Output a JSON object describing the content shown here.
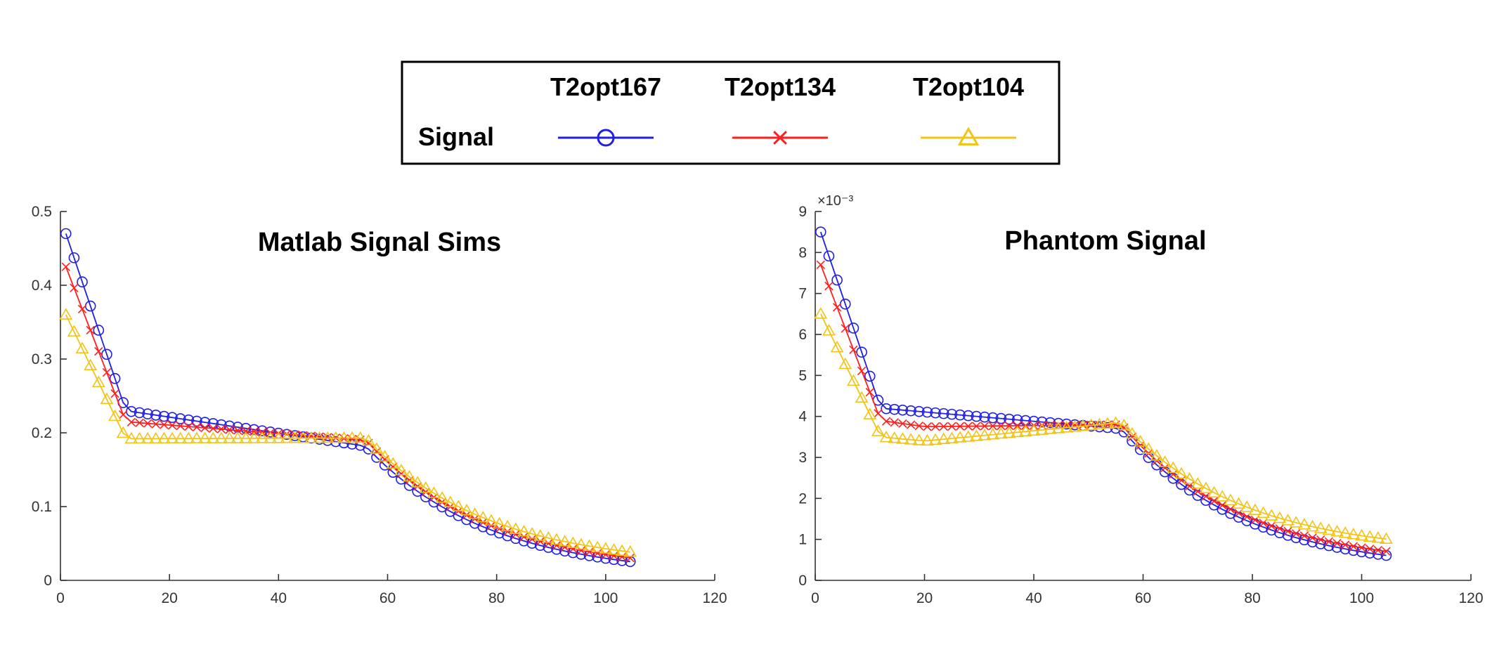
{
  "legend": {
    "row_label": "Signal",
    "entries": [
      {
        "name": "T2opt167",
        "color": "#1f1fe6",
        "marker": "circle"
      },
      {
        "name": "T2opt134",
        "color": "#ff1f1f",
        "marker": "x"
      },
      {
        "name": "T2opt104",
        "color": "#f0c419",
        "marker": "triangle"
      }
    ]
  },
  "chart_data": [
    {
      "type": "line",
      "title": "Matlab Signal Sims",
      "xlabel": "",
      "ylabel": "",
      "xlim": [
        0,
        120
      ],
      "ylim": [
        0,
        0.5
      ],
      "xticks": [
        "0",
        "20",
        "40",
        "60",
        "80",
        "100",
        "120"
      ],
      "yticks": [
        "0",
        "0.1",
        "0.2",
        "0.3",
        "0.4",
        "0.5"
      ],
      "exponent_label": "",
      "x_range": {
        "start": 1,
        "end": 105,
        "step": 1.5
      },
      "series": [
        {
          "name": "T2opt167",
          "knots": [
            [
              1,
              0.47
            ],
            [
              12,
              0.23
            ],
            [
              56,
              0.182
            ],
            [
              105,
              0.025
            ]
          ]
        },
        {
          "name": "T2opt134",
          "knots": [
            [
              1,
              0.425
            ],
            [
              12,
              0.215
            ],
            [
              56,
              0.19
            ],
            [
              105,
              0.03
            ]
          ]
        },
        {
          "name": "T2opt104",
          "knots": [
            [
              1,
              0.36
            ],
            [
              12,
              0.192
            ],
            [
              56,
              0.193
            ],
            [
              105,
              0.038
            ]
          ]
        }
      ]
    },
    {
      "type": "line",
      "title": "Phantom Signal",
      "xlabel": "",
      "ylabel": "",
      "xlim": [
        0,
        120
      ],
      "ylim": [
        0,
        9
      ],
      "xticks": [
        "0",
        "20",
        "40",
        "60",
        "80",
        "100",
        "120"
      ],
      "yticks": [
        "0",
        "1",
        "2",
        "3",
        "4",
        "5",
        "6",
        "7",
        "8",
        "9"
      ],
      "exponent_label": "×10⁻³",
      "x_range": {
        "start": 1,
        "end": 105,
        "step": 1.5
      },
      "series": [
        {
          "name": "T2opt167",
          "knots": [
            [
              1,
              8.5
            ],
            [
              12,
              4.2
            ],
            [
              56,
              3.7
            ],
            [
              105,
              0.6
            ]
          ]
        },
        {
          "name": "T2opt134",
          "knots": [
            [
              1,
              7.7
            ],
            [
              12,
              3.9
            ],
            [
              20,
              3.75
            ],
            [
              56,
              3.8
            ],
            [
              105,
              0.7
            ]
          ]
        },
        {
          "name": "T2opt104",
          "knots": [
            [
              1,
              6.5
            ],
            [
              12,
              3.5
            ],
            [
              20,
              3.4
            ],
            [
              56,
              3.85
            ],
            [
              105,
              1.0
            ]
          ]
        }
      ]
    }
  ]
}
